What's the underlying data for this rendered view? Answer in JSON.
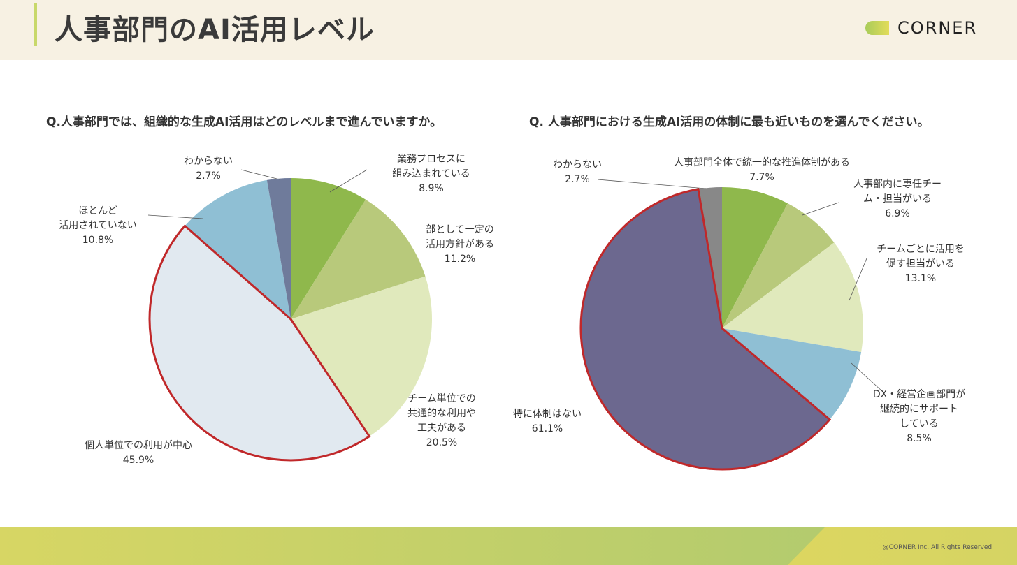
{
  "header": {
    "title": "人事部門のAI活用レベル",
    "logo_text": "CORNER"
  },
  "footer": {
    "copyright": "@CORNER Inc. All Rights Reserved."
  },
  "colors": {
    "highlight_border": "#c0282a"
  },
  "chart_data": [
    {
      "type": "pie",
      "title": "Q.人事部門では、組織的な生成AI活用はどのレベルまで進んでいますか。",
      "slices": [
        {
          "label": [
            "業務プロセスに",
            "組み込まれている"
          ],
          "value": 8.9,
          "value_label": "8.9%",
          "color": "#8fb84c"
        },
        {
          "label": [
            "部として一定の",
            "活用方針がある"
          ],
          "value": 11.2,
          "value_label": "11.2%",
          "color": "#b8c97b"
        },
        {
          "label": [
            "チーム単位での",
            "共通的な利用や",
            "工夫がある"
          ],
          "value": 20.5,
          "value_label": "20.5%",
          "color": "#e0e9bc"
        },
        {
          "label": [
            "個人単位での利用が中心"
          ],
          "value": 45.9,
          "value_label": "45.9%",
          "color": "#e1e9f0",
          "highlighted": true
        },
        {
          "label": [
            "ほとんど",
            "活用されていない"
          ],
          "value": 10.8,
          "value_label": "10.8%",
          "color": "#8fbfd4"
        },
        {
          "label": [
            "わからない"
          ],
          "value": 2.7,
          "value_label": "2.7%",
          "color": "#6f7b9b"
        }
      ]
    },
    {
      "type": "pie",
      "title": "Q. 人事部門における生成AI活用の体制に最も近いものを選んでください。",
      "slices": [
        {
          "label": [
            "人事部門全体で統一的な推進体制がある"
          ],
          "value": 7.7,
          "value_label": "7.7%",
          "color": "#8fb84c"
        },
        {
          "label": [
            "人事部内に専任チー",
            "ム・担当がいる"
          ],
          "value": 6.9,
          "value_label": "6.9%",
          "color": "#b8c97b"
        },
        {
          "label": [
            "チームごとに活用を",
            "促す担当がいる"
          ],
          "value": 13.1,
          "value_label": "13.1%",
          "color": "#e0e9bc"
        },
        {
          "label": [
            "DX・経営企画部門が",
            "継続的にサポート",
            "している"
          ],
          "value": 8.5,
          "value_label": "8.5%",
          "color": "#8fbfd4"
        },
        {
          "label": [
            "特に体制はない"
          ],
          "value": 61.1,
          "value_label": "61.1%",
          "color": "#6c688f",
          "highlighted": true
        },
        {
          "label": [
            "わからない"
          ],
          "value": 2.7,
          "value_label": "2.7%",
          "color": "#888888"
        }
      ]
    }
  ]
}
